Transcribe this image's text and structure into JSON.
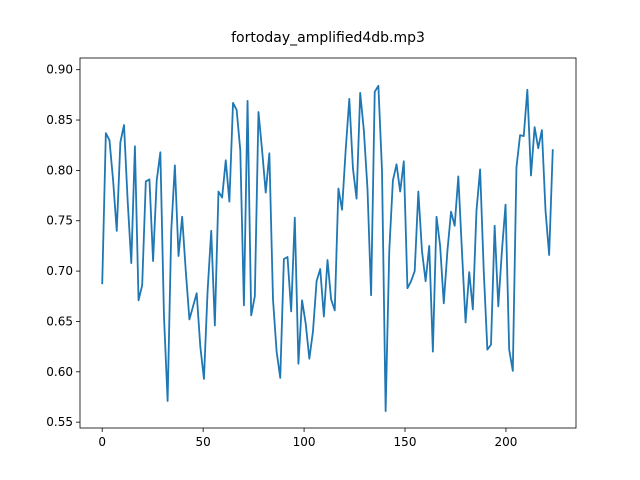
{
  "chart_data": {
    "type": "line",
    "title": "fortoday_amplified4db.mp3",
    "x": [
      0,
      1.8,
      3.6,
      5.4,
      7.2,
      9,
      10.8,
      12.6,
      14.4,
      16.2,
      18,
      19.8,
      21.6,
      23.4,
      25.2,
      27,
      28.8,
      30.6,
      32.4,
      34.2,
      36,
      37.8,
      39.6,
      41.4,
      43.2,
      45,
      46.8,
      48.6,
      50.4,
      52.2,
      54,
      55.8,
      57.6,
      59.4,
      61.2,
      63,
      64.8,
      66.6,
      68.4,
      70.2,
      72,
      73.8,
      75.6,
      77.4,
      79.2,
      81,
      82.8,
      84.6,
      86.4,
      88.2,
      90,
      91.8,
      93.6,
      95.4,
      97.2,
      99,
      100.8,
      102.6,
      104.4,
      106.2,
      108,
      109.8,
      111.6,
      113.4,
      115.2,
      117,
      118.8,
      120.6,
      122.4,
      124.2,
      126,
      127.8,
      129.6,
      131.4,
      133.2,
      135,
      136.8,
      138.6,
      140.4,
      142.2,
      144,
      145.8,
      147.6,
      149.4,
      151.2,
      153,
      154.8,
      156.6,
      158.4,
      160.2,
      162,
      163.8,
      165.6,
      167.4,
      169.2,
      171,
      172.8,
      174.6,
      176.4,
      178.2,
      180,
      181.8,
      183.6,
      185.4,
      187.2,
      189,
      190.8,
      192.6,
      194.4,
      196.2,
      198,
      199.8,
      201.6,
      203.4,
      205.2,
      207,
      208.8,
      210.6,
      212.4,
      214.2,
      216,
      217.8,
      219.6,
      221.4,
      223.2
    ],
    "series": [
      {
        "color": "#1f77b4",
        "values": [
          0.687,
          0.837,
          0.83,
          0.79,
          0.74,
          0.828,
          0.845,
          0.77,
          0.708,
          0.824,
          0.671,
          0.686,
          0.789,
          0.791,
          0.71,
          0.79,
          0.818,
          0.655,
          0.571,
          0.74,
          0.805,
          0.715,
          0.754,
          0.7,
          0.652,
          0.665,
          0.678,
          0.625,
          0.593,
          0.68,
          0.74,
          0.646,
          0.779,
          0.773,
          0.81,
          0.769,
          0.867,
          0.86,
          0.82,
          0.666,
          0.869,
          0.656,
          0.675,
          0.858,
          0.82,
          0.778,
          0.817,
          0.672,
          0.62,
          0.594,
          0.712,
          0.714,
          0.66,
          0.753,
          0.608,
          0.671,
          0.648,
          0.613,
          0.64,
          0.69,
          0.702,
          0.655,
          0.711,
          0.672,
          0.661,
          0.782,
          0.761,
          0.82,
          0.871,
          0.802,
          0.772,
          0.877,
          0.84,
          0.782,
          0.676,
          0.878,
          0.884,
          0.8,
          0.561,
          0.72,
          0.79,
          0.806,
          0.779,
          0.809,
          0.683,
          0.69,
          0.7,
          0.779,
          0.72,
          0.69,
          0.725,
          0.62,
          0.754,
          0.725,
          0.668,
          0.72,
          0.759,
          0.745,
          0.794,
          0.72,
          0.649,
          0.699,
          0.662,
          0.76,
          0.801,
          0.7,
          0.622,
          0.627,
          0.745,
          0.665,
          0.72,
          0.766,
          0.622,
          0.601,
          0.803,
          0.835,
          0.834,
          0.88,
          0.795,
          0.843,
          0.822,
          0.84,
          0.76,
          0.716,
          0.821
        ]
      }
    ],
    "xlim": [
      -11,
      234.7
    ],
    "ylim": [
      0.5442,
      0.9116
    ],
    "xticks": [
      0,
      50,
      100,
      150,
      200
    ],
    "yticks": [
      0.55,
      {
        "value": 0.6,
        "label": "0.60"
      },
      0.65,
      {
        "value": 0.7,
        "label": "0.70"
      },
      0.75,
      {
        "value": 0.8,
        "label": "0.80"
      },
      0.85,
      {
        "value": 0.9,
        "label": "0.90"
      }
    ]
  }
}
